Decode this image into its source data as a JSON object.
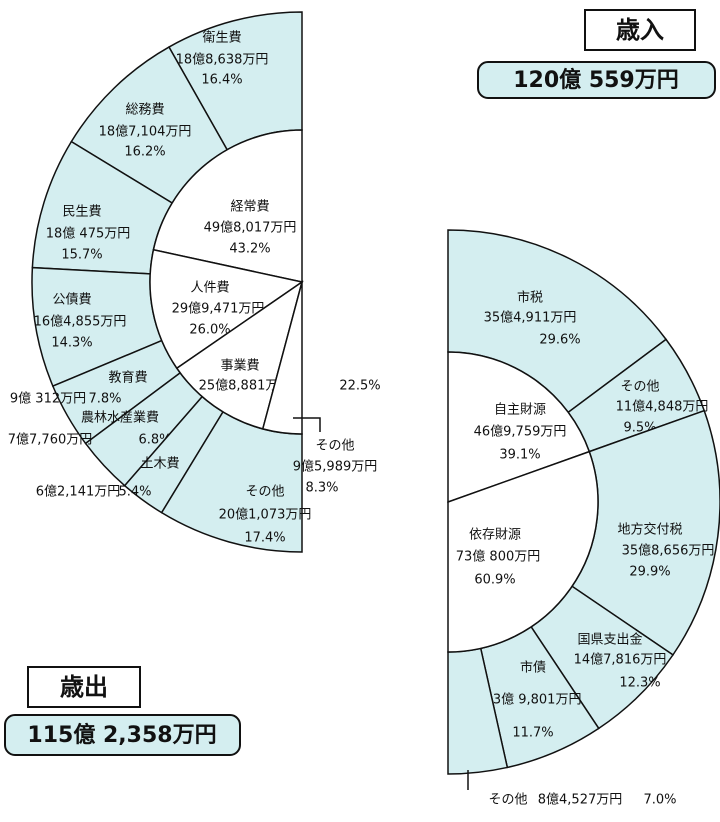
{
  "chart_data": [
    {
      "type": "half-donut",
      "title": "歳出",
      "total": "115億 2,358万円",
      "inner": {
        "categories": [
          "経常費",
          "人件費",
          "事業費",
          "その他"
        ],
        "amounts": [
          "49億8,017万円",
          "29億9,471万円",
          "25億8,881万円",
          "9億5,989万円"
        ],
        "values": [
          43.2,
          26.0,
          22.5,
          8.3
        ],
        "value_labels": [
          "43.2%",
          "26.0%",
          "22.5%",
          "8.3%"
        ]
      },
      "outer": {
        "categories": [
          "衛生費",
          "総務費",
          "民生費",
          "公債費",
          "教育費",
          "農林水産業費",
          "土木費",
          "その他"
        ],
        "amounts": [
          "18億8,638万円",
          "18億7,104万円",
          "18億 475万円",
          "16億4,855万円",
          "9億 312万円",
          "7億7,760万円",
          "6億2,141万円",
          "20億1,073万円"
        ],
        "values": [
          16.4,
          16.2,
          15.7,
          14.3,
          7.8,
          6.8,
          5.4,
          17.4
        ],
        "value_labels": [
          "16.4%",
          "16.2%",
          "15.7%",
          "14.3%",
          "7.8%",
          "6.8%",
          "5.4%",
          "17.4%"
        ]
      }
    },
    {
      "type": "half-donut",
      "title": "歳入",
      "total": "120億 559万円",
      "inner": {
        "categories": [
          "自主財源",
          "依存財源"
        ],
        "amounts": [
          "46億9,759万円",
          "73億 800万円"
        ],
        "values": [
          39.1,
          60.9
        ],
        "value_labels": [
          "39.1%",
          "60.9%"
        ]
      },
      "outer": {
        "categories": [
          "市税",
          "その他",
          "地方交付税",
          "国県支出金",
          "市債",
          "その他"
        ],
        "amounts": [
          "35億4,911万円",
          "11億4,848万円",
          "35億8,656万円",
          "14億7,816万円",
          "13億 9,801万円",
          "8億4,527万円"
        ],
        "values": [
          29.6,
          9.5,
          29.9,
          12.3,
          11.7,
          7.0
        ],
        "value_labels": [
          "29.6%",
          "9.5%",
          "29.9%",
          "12.3%",
          "11.7%",
          "7.0%"
        ]
      }
    }
  ]
}
